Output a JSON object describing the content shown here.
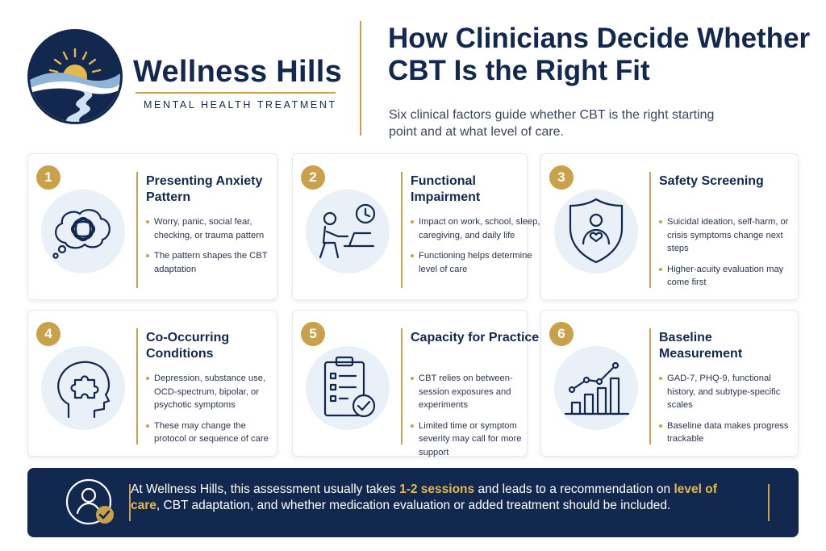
{
  "brand": {
    "name": "Wellness Hills",
    "tagline": "MENTAL HEALTH TREATMENT"
  },
  "headline": "How Clinicians Decide Whether CBT Is the Right Fit",
  "intro": "Six clinical factors guide whether CBT is the right starting point and at what level of care.",
  "colors": {
    "navy": "#13284f",
    "gold": "#c8a14a",
    "icon_bg": "#e9f0f8"
  },
  "cards": [
    {
      "number": "1",
      "title": "Presenting Anxiety Pattern",
      "icon": "thought-bubble-icon",
      "bullets": [
        "Worry, panic, social fear, checking, or trauma pattern",
        "The pattern shapes the CBT adaptation"
      ]
    },
    {
      "number": "2",
      "title": "Functional Impairment",
      "icon": "person-at-desk-clock-icon",
      "bullets": [
        "Impact on work, school, sleep, caregiving, and daily life",
        "Functioning helps determine level of care"
      ]
    },
    {
      "number": "3",
      "title": "Safety Screening",
      "icon": "shield-person-heart-icon",
      "bullets": [
        "Suicidal ideation, self-harm, or crisis symptoms change next steps",
        "Higher-acuity evaluation may come first"
      ]
    },
    {
      "number": "4",
      "title": "Co-Occurring Conditions",
      "icon": "head-puzzle-icon",
      "bullets": [
        "Depression, substance use, OCD-spectrum, bipolar, or psychotic symptoms",
        "These may change the protocol or sequence of care"
      ]
    },
    {
      "number": "5",
      "title": "Capacity for Practice",
      "icon": "clipboard-check-icon",
      "bullets": [
        "CBT relies on between-session exposures and experiments",
        "Limited time or symptom severity may call for more support"
      ]
    },
    {
      "number": "6",
      "title": "Baseline Measurement",
      "icon": "bar-chart-trend-icon",
      "bullets": [
        "GAD-7, PHQ-9, functional history, and subtype-specific scales",
        "Baseline data makes progress trackable"
      ]
    }
  ],
  "banner": {
    "icon": "person-check-icon",
    "text_1": "At Wellness Hills, this assessment usually takes ",
    "highlight_1": "1-2 sessions",
    "text_2": " and leads to a recommendation on ",
    "highlight_2": "level of care",
    "text_3": ", CBT adaptation, and whether medication evaluation or added treatment should be included."
  }
}
